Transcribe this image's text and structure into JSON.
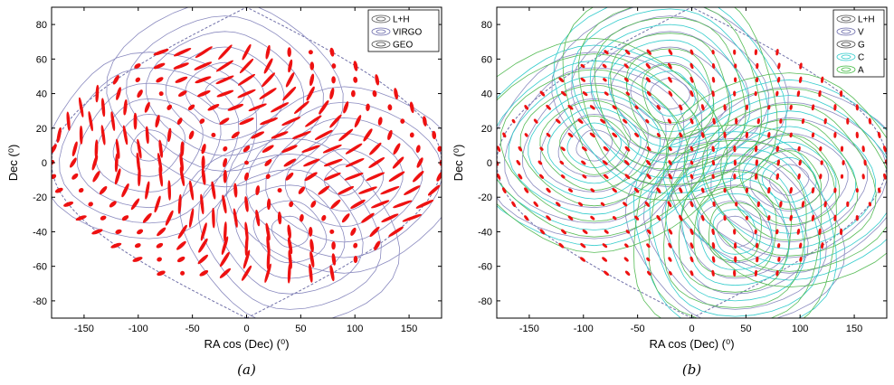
{
  "chart_data": [
    {
      "type": "scatter",
      "panel_caption": "(a)",
      "xlabel": "RA cos (Dec) (⁰)",
      "ylabel": "Dec (⁰)",
      "xlim": [
        -180,
        180
      ],
      "ylim": [
        -90,
        90
      ],
      "xticks": [
        -150,
        -100,
        -50,
        0,
        50,
        100,
        150
      ],
      "yticks": [
        -80,
        -60,
        -40,
        -20,
        0,
        20,
        40,
        60,
        80
      ],
      "grid": false,
      "legend_position": "top-right",
      "legend": [
        {
          "label": "L+H",
          "color": "#555555"
        },
        {
          "label": "VIRGO",
          "color": "#6a6aaa"
        },
        {
          "label": "GEO",
          "color": "#444444"
        }
      ],
      "series": [
        {
          "kind": "contours",
          "color": "#8a8abf"
        },
        {
          "kind": "error-ellipses",
          "color": "#ee1111",
          "style": "large"
        }
      ]
    },
    {
      "type": "scatter",
      "panel_caption": "(b)",
      "xlabel": "RA cos (Dec) (⁰)",
      "ylabel": "Dec (⁰)",
      "xlim": [
        -180,
        180
      ],
      "ylim": [
        -90,
        90
      ],
      "xticks": [
        -150,
        -100,
        -50,
        0,
        50,
        100,
        150
      ],
      "yticks": [
        -80,
        -60,
        -40,
        -20,
        0,
        20,
        40,
        60,
        80
      ],
      "grid": false,
      "legend_position": "top-right",
      "legend": [
        {
          "label": "L+H",
          "color": "#555555"
        },
        {
          "label": "V",
          "color": "#6a6aaa"
        },
        {
          "label": "G",
          "color": "#444444"
        },
        {
          "label": "C",
          "color": "#33cccc"
        },
        {
          "label": "A",
          "color": "#44bb44"
        }
      ],
      "series": [
        {
          "kind": "contours",
          "color": "#8a8abf"
        },
        {
          "kind": "contours",
          "color": "#33cccc"
        },
        {
          "kind": "contours",
          "color": "#55bb55"
        },
        {
          "kind": "error-ellipses",
          "color": "#ee1111",
          "style": "small"
        }
      ]
    }
  ]
}
